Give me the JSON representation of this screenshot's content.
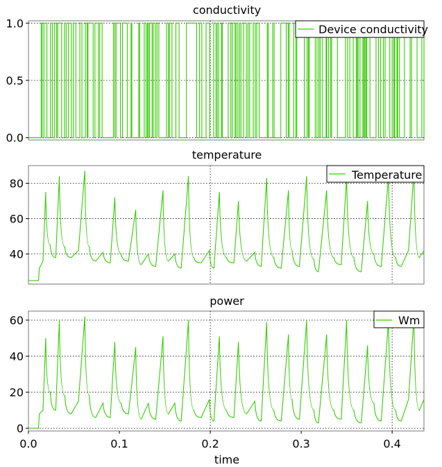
{
  "chart_data": [
    {
      "type": "line",
      "id": "conductivity",
      "title": "conductivity",
      "ylim": [
        -0.02,
        1.02
      ],
      "yticks": [
        0.0,
        0.5,
        1.0
      ],
      "ytick_labels": [
        "0.0",
        "0.5",
        "1.0"
      ],
      "xlim": [
        0.0,
        0.435
      ],
      "grid": "dotted at x=0.2 and x=0.4",
      "legend": "top-right",
      "series": [
        {
          "name": "Device conductivity",
          "color": "#33cc00",
          "style": "rapid switching between 0 and 1",
          "x": [
            0,
            0.012,
            0.012,
            0.435
          ],
          "y": [
            0,
            0,
            1,
            1
          ]
        }
      ]
    },
    {
      "type": "line",
      "id": "temperature",
      "title": "temperature",
      "ylim": [
        23,
        90
      ],
      "yticks": [
        40,
        60,
        80
      ],
      "ytick_labels": [
        "40",
        "60",
        "80"
      ],
      "xlim": [
        0.0,
        0.435
      ],
      "legend": "top-right",
      "series": [
        {
          "name": "Temperature",
          "color": "#33cc00",
          "x": [
            0.0,
            0.011,
            0.012,
            0.016,
            0.019,
            0.024,
            0.03,
            0.034,
            0.04,
            0.047,
            0.055,
            0.062,
            0.067,
            0.074,
            0.082,
            0.09,
            0.095,
            0.102,
            0.11,
            0.118,
            0.124,
            0.132,
            0.14,
            0.148,
            0.154,
            0.161,
            0.168,
            0.176,
            0.182,
            0.19,
            0.199,
            0.204,
            0.21,
            0.218,
            0.226,
            0.231,
            0.24,
            0.249,
            0.256,
            0.262,
            0.27,
            0.278,
            0.286,
            0.29,
            0.298,
            0.306,
            0.314,
            0.319,
            0.328,
            0.336,
            0.344,
            0.35,
            0.358,
            0.366,
            0.373,
            0.38,
            0.388,
            0.396,
            0.404,
            0.41,
            0.418,
            0.424,
            0.43,
            0.435
          ],
          "y": [
            25,
            25,
            32,
            36,
            75,
            45,
            38,
            84,
            44,
            38,
            42,
            87,
            44,
            36,
            41,
            35,
            72,
            40,
            36,
            65,
            34,
            40,
            33,
            76,
            36,
            40,
            32,
            84,
            38,
            35,
            42,
            32,
            75,
            38,
            35,
            70,
            36,
            41,
            33,
            83,
            38,
            32,
            76,
            42,
            33,
            84,
            37,
            30,
            76,
            38,
            34,
            84,
            38,
            30,
            70,
            40,
            33,
            84,
            38,
            33,
            42,
            87,
            38,
            42
          ]
        }
      ]
    },
    {
      "type": "line",
      "id": "power",
      "title": "power",
      "ylim": [
        -1.5,
        65
      ],
      "yticks": [
        0,
        20,
        40,
        60
      ],
      "ytick_labels": [
        "0",
        "20",
        "40",
        "60"
      ],
      "xlim": [
        0.0,
        0.435
      ],
      "xticks": [
        0.0,
        0.1,
        0.2,
        0.3,
        0.4
      ],
      "xtick_labels": [
        "0.0",
        "0.1",
        "0.2",
        "0.3",
        "0.4"
      ],
      "xlabel": "time",
      "legend": "top-right",
      "series": [
        {
          "name": "Wm",
          "color": "#33cc00",
          "x": [
            0.0,
            0.011,
            0.012,
            0.016,
            0.019,
            0.024,
            0.03,
            0.034,
            0.04,
            0.047,
            0.055,
            0.062,
            0.067,
            0.074,
            0.082,
            0.09,
            0.095,
            0.102,
            0.11,
            0.118,
            0.124,
            0.132,
            0.14,
            0.148,
            0.154,
            0.161,
            0.168,
            0.176,
            0.182,
            0.19,
            0.199,
            0.204,
            0.21,
            0.218,
            0.226,
            0.231,
            0.24,
            0.249,
            0.256,
            0.262,
            0.27,
            0.278,
            0.286,
            0.29,
            0.298,
            0.306,
            0.314,
            0.319,
            0.328,
            0.336,
            0.344,
            0.35,
            0.358,
            0.366,
            0.373,
            0.38,
            0.388,
            0.396,
            0.404,
            0.41,
            0.418,
            0.424,
            0.43,
            0.435
          ],
          "y": [
            0,
            0,
            8,
            10,
            50,
            20,
            10,
            60,
            18,
            8,
            15,
            62,
            18,
            6,
            14,
            6,
            48,
            14,
            8,
            45,
            5,
            14,
            5,
            51,
            8,
            14,
            4,
            60,
            10,
            6,
            16,
            4,
            51,
            10,
            6,
            48,
            8,
            15,
            4,
            59,
            10,
            4,
            52,
            16,
            5,
            60,
            10,
            3,
            52,
            10,
            5,
            60,
            10,
            3,
            46,
            14,
            4,
            60,
            10,
            4,
            16,
            62,
            10,
            16
          ]
        }
      ]
    }
  ]
}
